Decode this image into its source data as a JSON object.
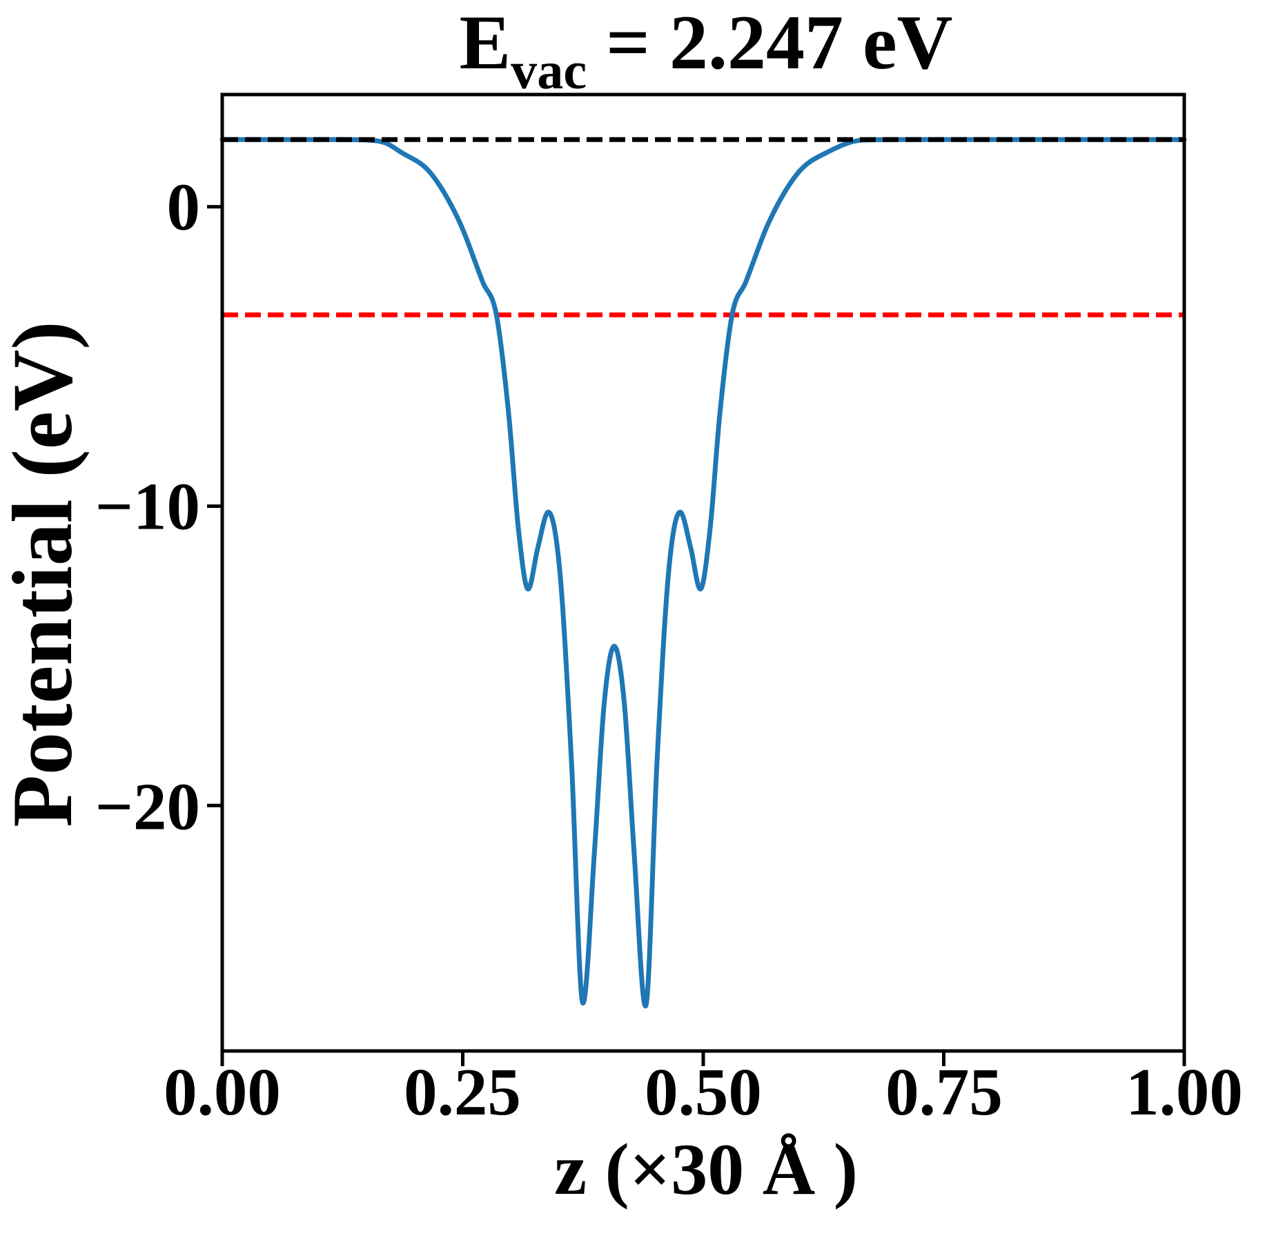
{
  "title": {
    "prefix": "E",
    "subscript": "vac",
    "suffix": " = 2.247 eV"
  },
  "axes": {
    "ylabel": "Potential (eV)",
    "xlabel": "z (×30 Å )",
    "x_ticks": [
      "0.00",
      "0.25",
      "0.50",
      "0.75",
      "1.00"
    ],
    "y_ticks": [
      "0",
      "−10",
      "−20"
    ]
  },
  "colors": {
    "curve": "#1f77b4",
    "vacuum_line": "#000000",
    "red_line": "#ff0000",
    "frame": "#000000",
    "text": "#000000",
    "background": "#ffffff"
  },
  "chart_data": {
    "type": "line",
    "title": "E_vac = 2.247 eV",
    "xlabel": "z (×30 Å )",
    "ylabel": "Potential (eV)",
    "xlim": [
      0,
      1
    ],
    "ylim": [
      -28.2,
      3.75
    ],
    "x_tick_values": [
      0,
      0.25,
      0.5,
      0.75,
      1.0
    ],
    "y_tick_values": [
      0,
      -10,
      -20
    ],
    "grid": false,
    "legend": "none",
    "vacuum_level_eV": 2.247,
    "reference_lines": [
      {
        "name": "vacuum-level",
        "value": 2.247,
        "color": "#000000",
        "style": "dashed",
        "layer": "above"
      },
      {
        "name": "red-dashed-level",
        "value": -3.61,
        "color": "#ff0000",
        "style": "dashed",
        "layer": "below"
      }
    ],
    "series": [
      {
        "name": "planar-averaged-potential",
        "color": "#1f77b4",
        "points": [
          [
            0.0,
            2.247
          ],
          [
            0.05,
            2.247
          ],
          [
            0.1,
            2.246
          ],
          [
            0.125,
            2.243
          ],
          [
            0.15,
            2.23
          ],
          [
            0.17,
            2.13
          ],
          [
            0.185,
            1.84
          ],
          [
            0.216,
            1.15
          ],
          [
            0.247,
            -0.53
          ],
          [
            0.271,
            -2.53
          ],
          [
            0.285,
            -3.61
          ],
          [
            0.298,
            -7.0
          ],
          [
            0.308,
            -10.8
          ],
          [
            0.318,
            -12.77
          ],
          [
            0.328,
            -11.4
          ],
          [
            0.339,
            -10.2
          ],
          [
            0.351,
            -12.2
          ],
          [
            0.363,
            -18.5
          ],
          [
            0.375,
            -26.6
          ],
          [
            0.387,
            -21.5
          ],
          [
            0.397,
            -16.6
          ],
          [
            0.4075,
            -14.68
          ],
          [
            0.418,
            -16.6
          ],
          [
            0.428,
            -21.5
          ],
          [
            0.44,
            -26.7
          ],
          [
            0.452,
            -18.5
          ],
          [
            0.464,
            -12.2
          ],
          [
            0.476,
            -10.2
          ],
          [
            0.487,
            -11.4
          ],
          [
            0.497,
            -12.77
          ],
          [
            0.507,
            -10.8
          ],
          [
            0.517,
            -7.0
          ],
          [
            0.53,
            -3.61
          ],
          [
            0.544,
            -2.53
          ],
          [
            0.568,
            -0.53
          ],
          [
            0.599,
            1.15
          ],
          [
            0.63,
            1.84
          ],
          [
            0.666,
            2.23
          ],
          [
            0.69,
            2.243
          ],
          [
            0.715,
            2.246
          ],
          [
            0.765,
            2.247
          ],
          [
            1.0,
            2.247
          ]
        ]
      }
    ]
  }
}
